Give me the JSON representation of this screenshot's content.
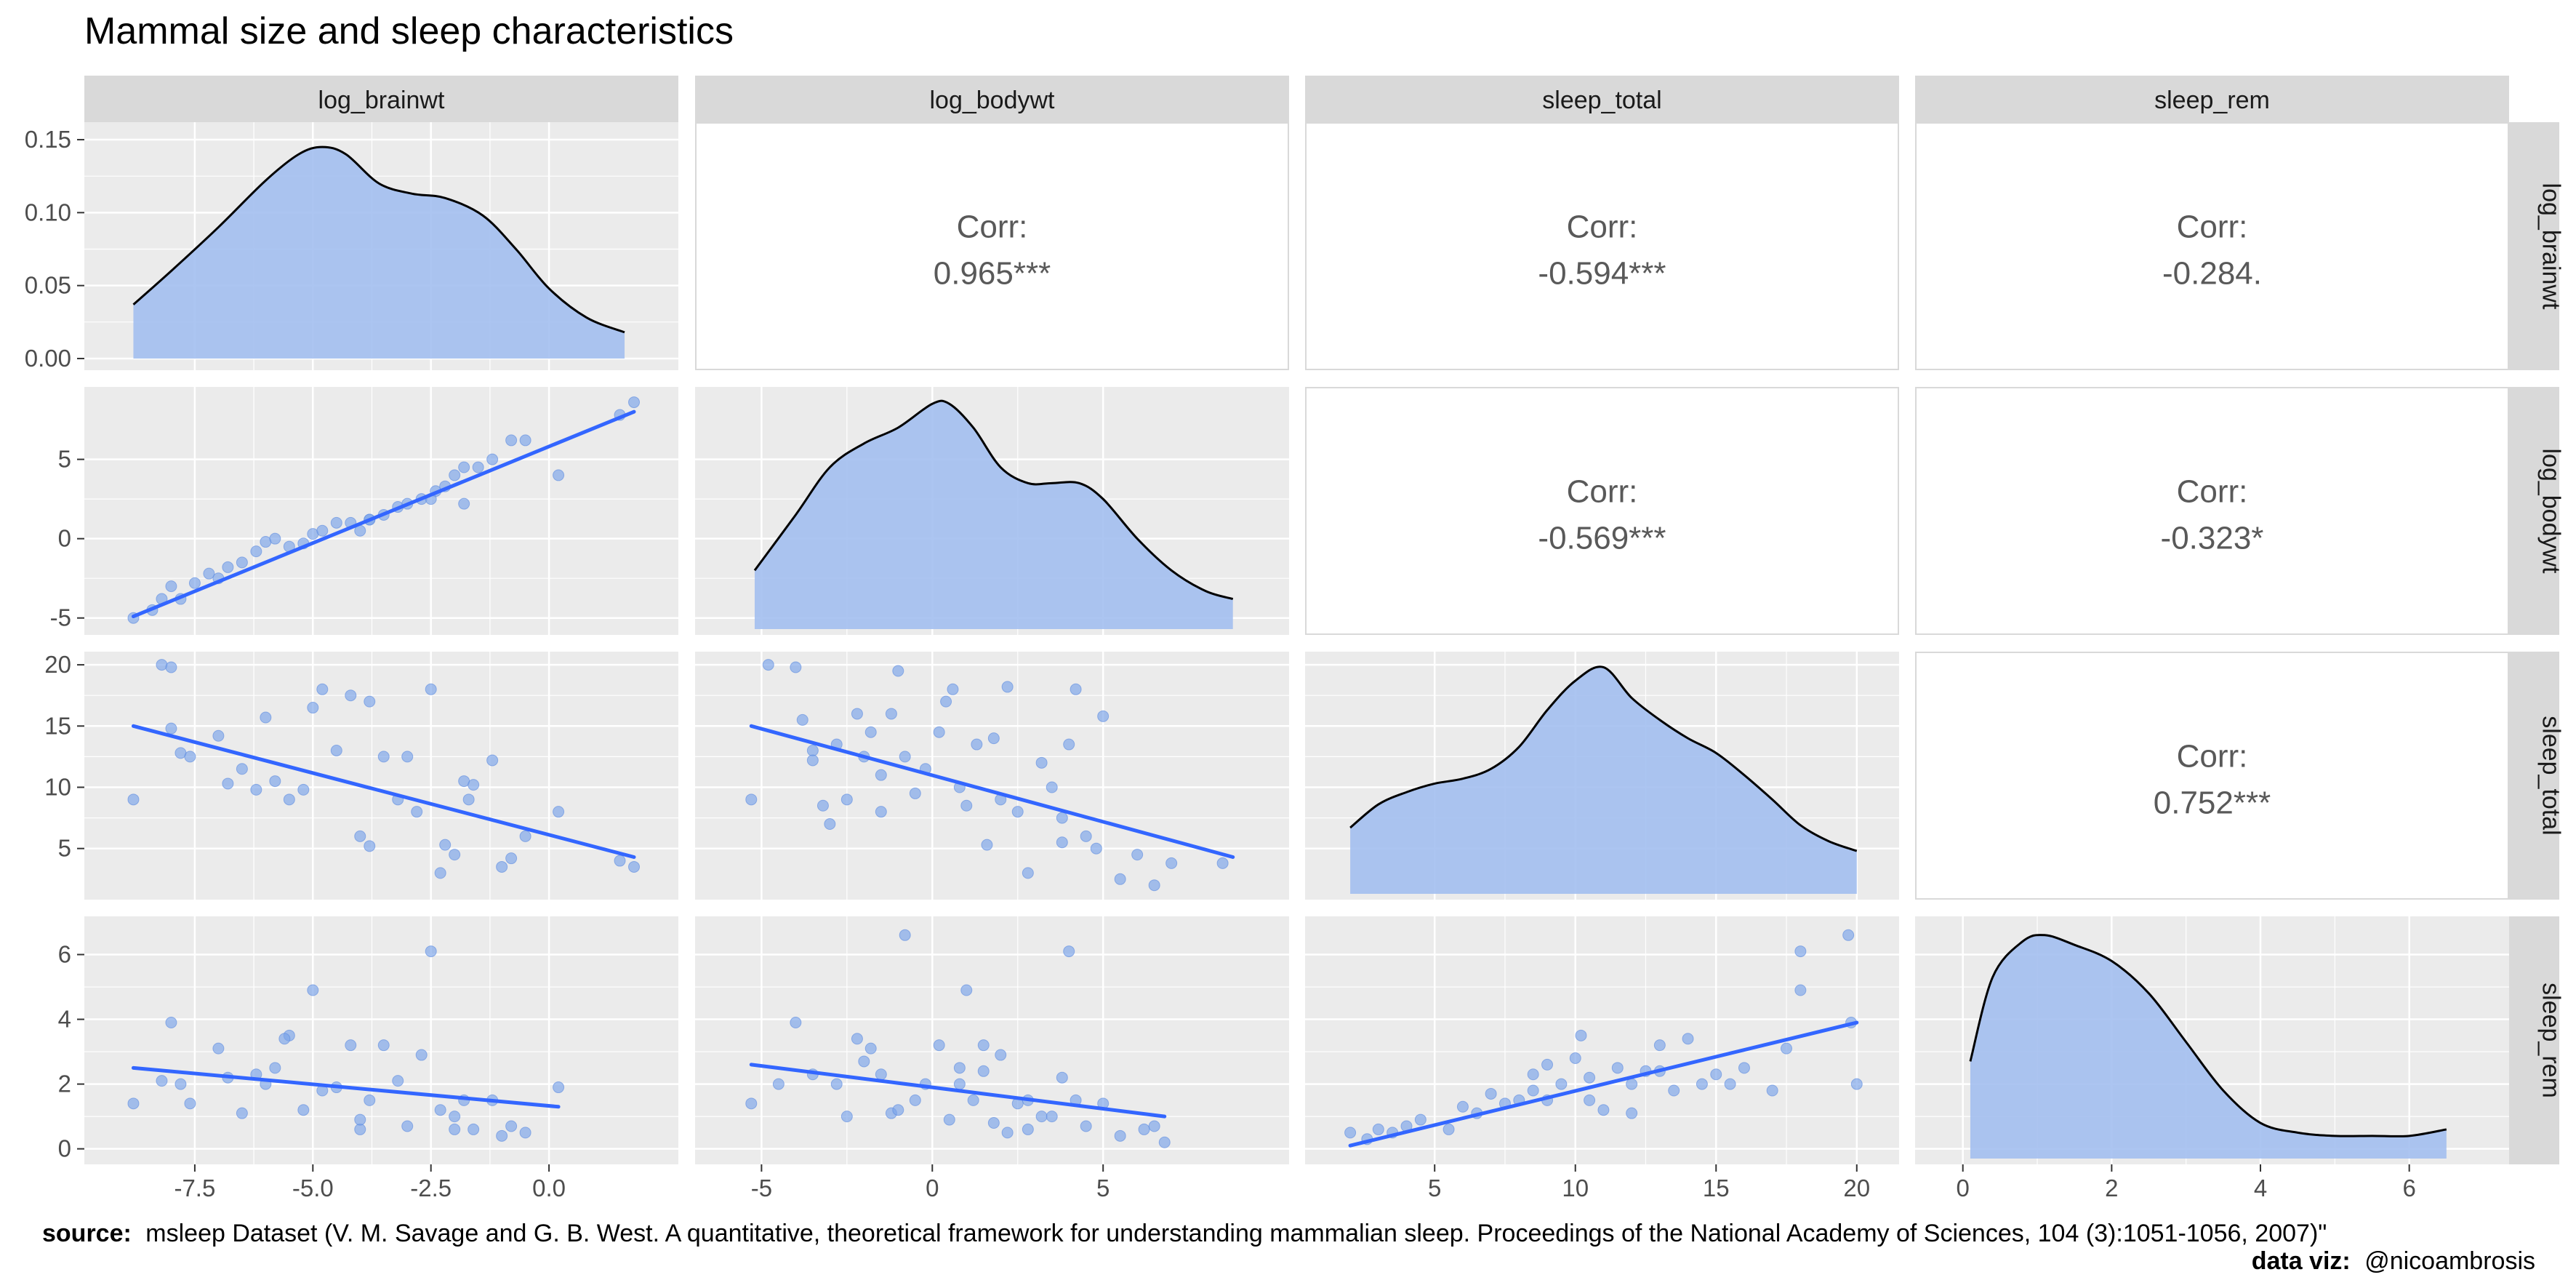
{
  "title": "Mammal size and sleep characteristics",
  "caption": {
    "source_label": "source:",
    "source_text": "msleep Dataset (V. M. Savage and G. B. West. A quantitative, theoretical framework for understanding mammalian sleep. Proceedings of the National Academy of Sciences, 104 (3):1051-1056, 2007)\"",
    "dataviz_label": "data viz:",
    "dataviz_text": "@nicoambrosis"
  },
  "colors": {
    "panel_bg": "#ebebeb",
    "corr_bg": "#ffffff",
    "strip_bg": "#d9d9d9",
    "fill": "#a3bff0",
    "point": "#7aa3ea",
    "line": "#3366ff",
    "curve": "#000000"
  },
  "chart_data": {
    "type": "scatter",
    "variables": [
      "log_brainwt",
      "log_bodywt",
      "sleep_total",
      "sleep_rem"
    ],
    "x_ticks": [
      [
        -7.5,
        -5.0,
        -2.5,
        0.0
      ],
      [
        -5,
        0,
        5
      ],
      [
        5,
        10,
        15,
        20
      ],
      [
        0,
        2,
        4,
        6
      ]
    ],
    "x_tick_labels": [
      [
        "-7.5",
        "-5.0",
        "-2.5",
        "0.0"
      ],
      [
        "-5",
        "0",
        "5"
      ],
      [
        "5",
        "10",
        "15",
        "20"
      ],
      [
        "0",
        "2",
        "4",
        "6"
      ]
    ],
    "row_y_ticks": [
      {
        "values": [
          0.0,
          0.05,
          0.1,
          0.15
        ],
        "labels": [
          "0.00",
          "0.05",
          "0.10",
          "0.15"
        ],
        "range": [
          -0.004,
          0.158
        ]
      },
      {
        "values": [
          -5,
          0,
          5
        ],
        "labels": [
          "-5",
          "0",
          "5"
        ],
        "range": [
          -5.7,
          9.2
        ]
      },
      {
        "values": [
          5,
          10,
          15,
          20
        ],
        "labels": [
          "5",
          "10",
          "15",
          "20"
        ],
        "range": [
          1.3,
          20.6
        ]
      },
      {
        "values": [
          0,
          2,
          4,
          6
        ],
        "labels": [
          "0",
          "2",
          "4",
          "6"
        ],
        "range": [
          -0.3,
          7.0
        ]
      }
    ],
    "x_ranges": [
      [
        -9.3,
        2.2
      ],
      [
        -6.2,
        9.7
      ],
      [
        1.3,
        20.6
      ],
      [
        -0.3,
        7.0
      ]
    ],
    "correlations": [
      {
        "row": 0,
        "col": 1,
        "label": "Corr:",
        "value": "0.965***"
      },
      {
        "row": 0,
        "col": 2,
        "label": "Corr:",
        "value": "-0.594***"
      },
      {
        "row": 0,
        "col": 3,
        "label": "Corr:",
        "value": "-0.284."
      },
      {
        "row": 1,
        "col": 2,
        "label": "Corr:",
        "value": "-0.569***"
      },
      {
        "row": 1,
        "col": 3,
        "label": "Corr:",
        "value": "-0.323*"
      },
      {
        "row": 2,
        "col": 3,
        "label": "Corr:",
        "value": "0.752***"
      }
    ],
    "densities": [
      {
        "x": [
          -8.8,
          -8.0,
          -7.0,
          -6.0,
          -5.3,
          -4.8,
          -4.3,
          -3.6,
          -2.9,
          -2.2,
          -1.4,
          -0.7,
          0.0,
          0.8,
          1.6
        ],
        "y": [
          0.037,
          0.06,
          0.09,
          0.122,
          0.14,
          0.145,
          0.14,
          0.12,
          0.113,
          0.11,
          0.098,
          0.075,
          0.048,
          0.028,
          0.018
        ]
      },
      {
        "x": [
          -5.2,
          -4.0,
          -3.0,
          -2.0,
          -1.0,
          0.0,
          0.5,
          1.2,
          2.0,
          2.8,
          3.5,
          4.3,
          5.0,
          6.0,
          7.0,
          8.0,
          8.8
        ],
        "y": [
          -2.0,
          1.5,
          4.5,
          6.0,
          7.0,
          8.5,
          8.5,
          7.0,
          4.5,
          3.5,
          3.5,
          3.5,
          2.5,
          0.0,
          -2.0,
          -3.3,
          -3.8
        ]
      },
      {
        "x": [
          2.0,
          3.0,
          4.0,
          5.0,
          6.0,
          7.0,
          8.0,
          9.0,
          10.0,
          11.0,
          12.0,
          13.0,
          14.0,
          15.0,
          16.0,
          17.0,
          18.0,
          19.0,
          20.0
        ],
        "y": [
          6.7,
          8.6,
          9.6,
          10.3,
          10.7,
          11.5,
          13.3,
          16.3,
          18.7,
          19.8,
          17.3,
          15.5,
          14.0,
          12.8,
          11.0,
          9.0,
          6.9,
          5.6,
          4.8
        ]
      },
      {
        "x": [
          0.1,
          0.4,
          0.8,
          1.1,
          1.5,
          2.0,
          2.5,
          3.0,
          3.5,
          4.0,
          4.5,
          5.0,
          5.5,
          6.0,
          6.5
        ],
        "y": [
          2.7,
          5.3,
          6.4,
          6.6,
          6.3,
          5.8,
          4.8,
          3.3,
          1.8,
          0.8,
          0.5,
          0.4,
          0.4,
          0.4,
          0.6
        ]
      }
    ],
    "scatter_points": {
      "r1c0": [
        [
          -8.8,
          -5.0
        ],
        [
          -8.4,
          -4.5
        ],
        [
          -8.2,
          -3.8
        ],
        [
          -8.0,
          -3.0
        ],
        [
          -7.8,
          -3.8
        ],
        [
          -7.5,
          -2.8
        ],
        [
          -7.2,
          -2.2
        ],
        [
          -7.0,
          -2.5
        ],
        [
          -6.8,
          -1.8
        ],
        [
          -6.5,
          -1.5
        ],
        [
          -6.2,
          -0.8
        ],
        [
          -6.0,
          -0.2
        ],
        [
          -5.8,
          0.0
        ],
        [
          -5.5,
          -0.5
        ],
        [
          -5.2,
          -0.3
        ],
        [
          -5.0,
          0.3
        ],
        [
          -4.8,
          0.5
        ],
        [
          -4.5,
          1.0
        ],
        [
          -4.2,
          1.0
        ],
        [
          -4.0,
          0.5
        ],
        [
          -3.8,
          1.2
        ],
        [
          -3.5,
          1.5
        ],
        [
          -3.2,
          2.0
        ],
        [
          -3.0,
          2.2
        ],
        [
          -2.7,
          2.5
        ],
        [
          -2.4,
          3.0
        ],
        [
          -2.2,
          3.3
        ],
        [
          -2.0,
          4.0
        ],
        [
          -1.8,
          4.5
        ],
        [
          -1.5,
          4.5
        ],
        [
          -1.2,
          5.0
        ],
        [
          -0.8,
          6.2
        ],
        [
          -0.5,
          6.2
        ],
        [
          0.2,
          4.0
        ],
        [
          1.5,
          7.8
        ],
        [
          1.8,
          8.6
        ],
        [
          -1.8,
          2.2
        ],
        [
          -2.5,
          2.5
        ],
        [
          -3.8,
          1.2
        ]
      ],
      "r2c0": [
        [
          -8.8,
          9.0
        ],
        [
          -8.2,
          20.0
        ],
        [
          -8.0,
          19.8
        ],
        [
          -8.0,
          14.8
        ],
        [
          -7.8,
          12.8
        ],
        [
          -7.6,
          12.5
        ],
        [
          -7.0,
          14.2
        ],
        [
          -6.8,
          10.3
        ],
        [
          -6.5,
          11.5
        ],
        [
          -6.2,
          9.8
        ],
        [
          -6.0,
          15.7
        ],
        [
          -5.8,
          10.5
        ],
        [
          -5.5,
          9.0
        ],
        [
          -5.2,
          9.8
        ],
        [
          -5.0,
          16.5
        ],
        [
          -4.8,
          18.0
        ],
        [
          -4.5,
          13.0
        ],
        [
          -4.2,
          17.5
        ],
        [
          -4.0,
          6.0
        ],
        [
          -3.8,
          17.0
        ],
        [
          -3.5,
          12.5
        ],
        [
          -3.2,
          9.0
        ],
        [
          -3.0,
          12.5
        ],
        [
          -2.8,
          8.0
        ],
        [
          -2.5,
          18.0
        ],
        [
          -2.3,
          3.0
        ],
        [
          -2.0,
          4.5
        ],
        [
          -1.8,
          10.5
        ],
        [
          -1.6,
          10.2
        ],
        [
          -1.2,
          12.2
        ],
        [
          -1.0,
          3.5
        ],
        [
          -0.8,
          4.2
        ],
        [
          -0.5,
          6.0
        ],
        [
          0.2,
          8.0
        ],
        [
          1.5,
          4.0
        ],
        [
          1.8,
          3.5
        ],
        [
          -1.7,
          9.0
        ],
        [
          -3.8,
          5.2
        ],
        [
          -2.2,
          5.3
        ]
      ],
      "r3c0": [
        [
          -8.8,
          1.4
        ],
        [
          -8.2,
          2.1
        ],
        [
          -8.0,
          3.9
        ],
        [
          -7.8,
          2.0
        ],
        [
          -7.6,
          1.4
        ],
        [
          -7.0,
          3.1
        ],
        [
          -6.8,
          2.2
        ],
        [
          -6.5,
          1.1
        ],
        [
          -6.2,
          2.3
        ],
        [
          -6.0,
          2.0
        ],
        [
          -5.8,
          2.5
        ],
        [
          -5.5,
          3.5
        ],
        [
          -5.2,
          1.2
        ],
        [
          -5.0,
          4.9
        ],
        [
          -4.8,
          1.8
        ],
        [
          -4.5,
          1.9
        ],
        [
          -4.2,
          3.2
        ],
        [
          -4.0,
          0.6
        ],
        [
          -3.8,
          1.5
        ],
        [
          -3.5,
          3.2
        ],
        [
          -3.2,
          2.1
        ],
        [
          -3.0,
          0.7
        ],
        [
          -2.7,
          2.9
        ],
        [
          -2.5,
          6.1
        ],
        [
          -2.3,
          1.2
        ],
        [
          -2.0,
          1.0
        ],
        [
          -1.8,
          1.5
        ],
        [
          -1.6,
          0.6
        ],
        [
          -1.2,
          1.5
        ],
        [
          -1.0,
          0.4
        ],
        [
          -0.8,
          0.7
        ],
        [
          -0.5,
          0.5
        ],
        [
          0.2,
          1.9
        ],
        [
          -4.0,
          0.9
        ],
        [
          -2.0,
          0.6
        ],
        [
          -5.6,
          3.4
        ]
      ],
      "r2c1": [
        [
          -5.3,
          9.0
        ],
        [
          -4.8,
          20.0
        ],
        [
          -4.0,
          19.8
        ],
        [
          -3.8,
          15.5
        ],
        [
          -3.5,
          13.0
        ],
        [
          -3.2,
          8.5
        ],
        [
          -3.0,
          7.0
        ],
        [
          -2.8,
          13.5
        ],
        [
          -2.5,
          9.0
        ],
        [
          -2.2,
          16.0
        ],
        [
          -2.0,
          12.5
        ],
        [
          -1.8,
          14.5
        ],
        [
          -1.5,
          11.0
        ],
        [
          -1.2,
          16.0
        ],
        [
          -1.0,
          19.5
        ],
        [
          -0.8,
          12.5
        ],
        [
          -0.5,
          9.5
        ],
        [
          -0.2,
          11.5
        ],
        [
          0.2,
          14.5
        ],
        [
          0.4,
          17.0
        ],
        [
          0.6,
          18.0
        ],
        [
          0.8,
          10.0
        ],
        [
          1.0,
          8.5
        ],
        [
          1.3,
          13.5
        ],
        [
          1.6,
          5.3
        ],
        [
          1.8,
          14.0
        ],
        [
          2.2,
          18.2
        ],
        [
          2.5,
          8.0
        ],
        [
          2.8,
          3.0
        ],
        [
          3.2,
          12.0
        ],
        [
          3.5,
          10.0
        ],
        [
          3.8,
          5.5
        ],
        [
          4.0,
          13.5
        ],
        [
          4.2,
          18.0
        ],
        [
          4.5,
          6.0
        ],
        [
          5.0,
          15.8
        ],
        [
          5.5,
          2.5
        ],
        [
          6.0,
          4.5
        ],
        [
          6.5,
          2.0
        ],
        [
          7.0,
          3.8
        ],
        [
          8.5,
          3.8
        ],
        [
          -3.5,
          12.2
        ],
        [
          -1.5,
          8.0
        ],
        [
          2.0,
          9.0
        ],
        [
          3.8,
          7.5
        ],
        [
          4.8,
          5.0
        ]
      ],
      "r3c1": [
        [
          -5.3,
          1.4
        ],
        [
          -4.5,
          2.0
        ],
        [
          -4.0,
          3.9
        ],
        [
          -3.5,
          2.3
        ],
        [
          -2.8,
          2.0
        ],
        [
          -2.5,
          1.0
        ],
        [
          -2.2,
          3.4
        ],
        [
          -2.0,
          2.7
        ],
        [
          -1.8,
          3.1
        ],
        [
          -1.5,
          2.3
        ],
        [
          -1.2,
          1.1
        ],
        [
          -0.8,
          6.6
        ],
        [
          -0.5,
          1.5
        ],
        [
          -0.2,
          2.0
        ],
        [
          0.2,
          3.2
        ],
        [
          0.5,
          0.9
        ],
        [
          0.8,
          2.0
        ],
        [
          1.0,
          4.9
        ],
        [
          1.2,
          1.5
        ],
        [
          1.5,
          2.4
        ],
        [
          1.8,
          0.8
        ],
        [
          2.0,
          2.9
        ],
        [
          2.2,
          0.5
        ],
        [
          2.5,
          1.4
        ],
        [
          2.8,
          0.6
        ],
        [
          3.2,
          1.0
        ],
        [
          3.5,
          1.0
        ],
        [
          3.8,
          2.2
        ],
        [
          4.0,
          6.1
        ],
        [
          4.2,
          1.5
        ],
        [
          4.5,
          0.7
        ],
        [
          5.0,
          1.4
        ],
        [
          5.5,
          0.4
        ],
        [
          6.2,
          0.6
        ],
        [
          6.5,
          0.7
        ],
        [
          6.8,
          0.2
        ],
        [
          -1.0,
          1.2
        ],
        [
          0.8,
          2.5
        ],
        [
          2.8,
          1.5
        ],
        [
          1.5,
          3.2
        ]
      ],
      "r3c2": [
        [
          2.0,
          0.5
        ],
        [
          2.6,
          0.3
        ],
        [
          3.0,
          0.6
        ],
        [
          3.5,
          0.5
        ],
        [
          4.0,
          0.7
        ],
        [
          4.5,
          0.9
        ],
        [
          5.5,
          0.6
        ],
        [
          6.0,
          1.3
        ],
        [
          6.5,
          1.1
        ],
        [
          7.0,
          1.7
        ],
        [
          7.5,
          1.4
        ],
        [
          8.0,
          1.5
        ],
        [
          8.5,
          2.3
        ],
        [
          9.0,
          2.6
        ],
        [
          9.5,
          2.0
        ],
        [
          10.0,
          2.8
        ],
        [
          10.2,
          3.5
        ],
        [
          10.5,
          2.2
        ],
        [
          11.0,
          1.2
        ],
        [
          11.5,
          2.5
        ],
        [
          12.0,
          1.1
        ],
        [
          12.5,
          2.4
        ],
        [
          13.0,
          2.4
        ],
        [
          13.5,
          1.8
        ],
        [
          14.0,
          3.4
        ],
        [
          14.5,
          2.0
        ],
        [
          15.0,
          2.3
        ],
        [
          15.5,
          2.0
        ],
        [
          16.0,
          2.5
        ],
        [
          17.0,
          1.8
        ],
        [
          17.5,
          3.1
        ],
        [
          18.0,
          6.1
        ],
        [
          18.0,
          4.9
        ],
        [
          19.7,
          6.6
        ],
        [
          19.8,
          3.9
        ],
        [
          20.0,
          2.0
        ],
        [
          9.0,
          1.5
        ],
        [
          10.5,
          1.5
        ],
        [
          8.5,
          1.8
        ],
        [
          12.0,
          2.0
        ],
        [
          13.0,
          3.2
        ]
      ]
    },
    "fit_lines": {
      "r1c0": [
        [
          -8.8,
          -4.9
        ],
        [
          1.8,
          8.0
        ]
      ],
      "r2c0": [
        [
          -8.8,
          15.0
        ],
        [
          1.8,
          4.3
        ]
      ],
      "r3c0": [
        [
          -8.8,
          2.5
        ],
        [
          0.2,
          1.3
        ]
      ],
      "r2c1": [
        [
          -5.3,
          15.0
        ],
        [
          8.8,
          4.3
        ]
      ],
      "r3c1": [
        [
          -5.3,
          2.6
        ],
        [
          6.8,
          1.0
        ]
      ],
      "r3c2": [
        [
          2.0,
          0.1
        ],
        [
          20.0,
          3.9
        ]
      ]
    }
  }
}
